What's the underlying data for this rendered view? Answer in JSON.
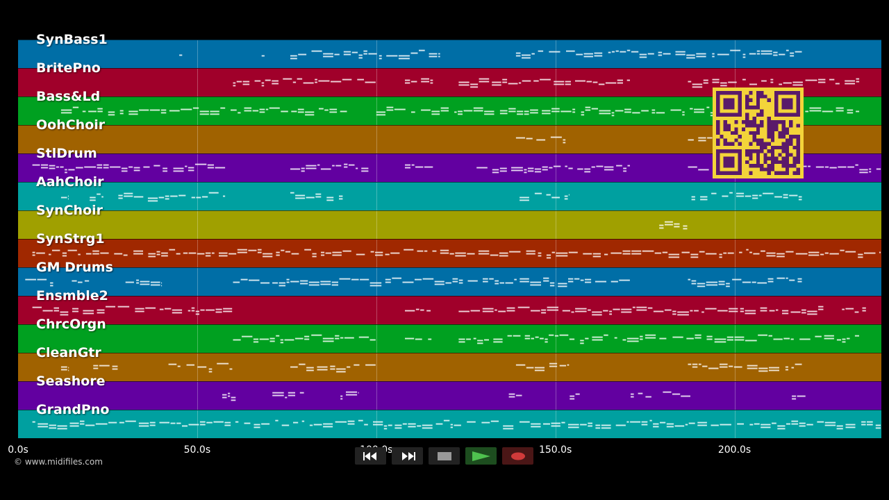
{
  "tracks": [
    {
      "name": "SynBass1",
      "color": "#006ea6"
    },
    {
      "name": "BritePno",
      "color": "#a0002a"
    },
    {
      "name": "Bass&Ld",
      "color": "#00a020"
    },
    {
      "name": "OohChoir",
      "color": "#a06200"
    },
    {
      "name": "StlDrum",
      "color": "#6200a0"
    },
    {
      "name": "AahChoir",
      "color": "#00a0a0"
    },
    {
      "name": "SynChoir",
      "color": "#a0a000"
    },
    {
      "name": "SynStrg1",
      "color": "#a02800"
    },
    {
      "name": "GM Drums",
      "color": "#006ea6"
    },
    {
      "name": "Ensmble2",
      "color": "#a0002a"
    },
    {
      "name": "ChrcOrgn",
      "color": "#00a020"
    },
    {
      "name": "CleanGtr",
      "color": "#a06200"
    },
    {
      "name": "Seashore",
      "color": "#6200a0"
    },
    {
      "name": "GrandPno",
      "color": "#00a0a0"
    }
  ],
  "timeline": {
    "max_seconds": 241,
    "ticks": [
      "0.0s",
      "50.0s",
      "100.0s",
      "150.0s",
      "200.0s"
    ],
    "tick_values": [
      0,
      50,
      100,
      150,
      200
    ]
  },
  "notes": [
    [
      [
        45,
        46
      ],
      [
        68,
        69
      ],
      [
        76,
        118
      ],
      [
        139,
        219
      ]
    ],
    [
      [
        60,
        100
      ],
      [
        108,
        116
      ],
      [
        123,
        171
      ],
      [
        187,
        235
      ]
    ],
    [
      [
        12,
        92
      ],
      [
        100,
        235
      ]
    ],
    [
      [
        139,
        153
      ],
      [
        187,
        194
      ]
    ],
    [
      [
        4,
        58
      ],
      [
        76,
        98
      ],
      [
        108,
        116
      ],
      [
        128,
        171
      ],
      [
        187,
        241
      ]
    ],
    [
      [
        12,
        14
      ],
      [
        20,
        24
      ],
      [
        28,
        58
      ],
      [
        76,
        92
      ],
      [
        140,
        154
      ],
      [
        188,
        219
      ]
    ],
    [
      [
        179,
        187
      ]
    ],
    [
      [
        4,
        241
      ]
    ],
    [
      [
        2,
        10
      ],
      [
        15,
        20
      ],
      [
        30,
        40
      ],
      [
        60,
        171
      ],
      [
        187,
        219
      ]
    ],
    [
      [
        4,
        60
      ],
      [
        108,
        116
      ],
      [
        123,
        225
      ],
      [
        230,
        237
      ]
    ],
    [
      [
        60,
        100
      ],
      [
        108,
        116
      ],
      [
        123,
        235
      ]
    ],
    [
      [
        12,
        14
      ],
      [
        21,
        28
      ],
      [
        42,
        60
      ],
      [
        76,
        100
      ],
      [
        139,
        154
      ],
      [
        187,
        219
      ]
    ],
    [
      [
        57,
        61
      ],
      [
        71,
        80
      ],
      [
        90,
        95
      ],
      [
        137,
        141
      ],
      [
        154,
        157
      ],
      [
        171,
        177
      ],
      [
        180,
        185
      ],
      [
        185,
        189
      ],
      [
        216,
        220
      ]
    ],
    [
      [
        4,
        241
      ]
    ]
  ],
  "copyright": "© www.midifiles.com",
  "qr_image": "qr-code",
  "transport": {
    "rewind_icon": "rewind-icon",
    "fast_forward_icon": "fast-forward-icon",
    "stop_icon": "stop-icon",
    "play_icon": "play-icon",
    "record_icon": "record-icon"
  }
}
